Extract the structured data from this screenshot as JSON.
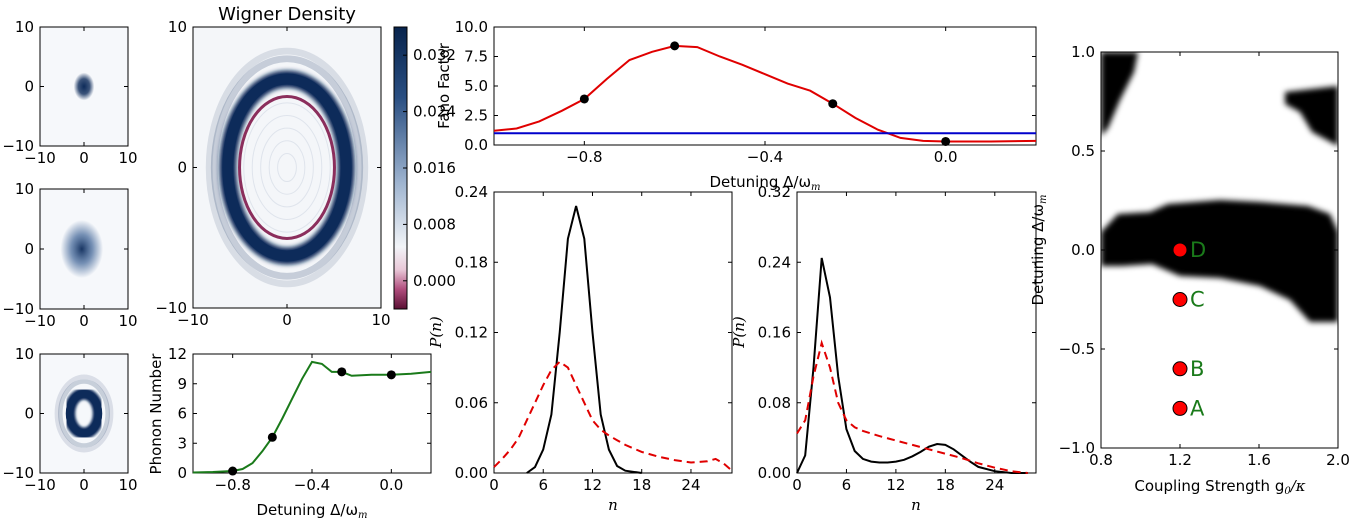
{
  "chart_data": [
    {
      "id": "small_a",
      "type": "heatmap",
      "xlim": [
        -10,
        10
      ],
      "ylim": [
        -10,
        10
      ],
      "xticks": [
        -10,
        0,
        10
      ],
      "yticks": [
        -10,
        0,
        10
      ],
      "shape": "blob",
      "center": [
        0,
        0
      ],
      "radius": 0.9,
      "sigma": 0.45,
      "color": "#0d2b5a"
    },
    {
      "id": "small_b",
      "type": "heatmap",
      "xlim": [
        -10,
        10
      ],
      "ylim": [
        -10,
        10
      ],
      "xticks": [
        -10,
        0,
        10
      ],
      "yticks": [
        -10,
        0,
        10
      ],
      "shape": "blob",
      "center": [
        -0.5,
        0
      ],
      "radius": 2.2,
      "sigma": 1.1,
      "color": "#0d2b5a"
    },
    {
      "id": "small_c",
      "type": "heatmap",
      "xlim": [
        -10,
        10
      ],
      "ylim": [
        -10,
        10
      ],
      "xticks": [
        -10,
        0,
        10
      ],
      "yticks": [
        -10,
        0,
        10
      ],
      "shape": "ring",
      "center": [
        0,
        0
      ],
      "ring_radius": 3.3,
      "ring_width": 1.3,
      "color": "#0d2b5a"
    },
    {
      "id": "wigner",
      "type": "heatmap",
      "title": "Wigner Density",
      "xlim": [
        -10,
        10
      ],
      "ylim": [
        -10,
        10
      ],
      "xticks": [
        -10,
        0,
        10
      ],
      "yticks": [
        -10,
        0,
        10
      ],
      "shape": "ring",
      "center": [
        0,
        0
      ],
      "ring_radius": 6.3,
      "ring_width": 0.9,
      "negative_ring_radius": 5.05,
      "color": "#0d2b5a",
      "negative_color": "#8b2e5c",
      "colorbar": {
        "ticks": [
          "0.032",
          "0.024",
          "0.016",
          "0.008",
          "0.000"
        ],
        "values": [
          0.032,
          0.024,
          0.016,
          0.008,
          0.0
        ],
        "range": [
          -0.004,
          0.036
        ]
      }
    },
    {
      "id": "phonon",
      "type": "line",
      "xlabel": "Detuning Δ/ω",
      "xlabel_sub": "m",
      "ylabel": "Phonon Number",
      "xlim": [
        -1.0,
        0.2
      ],
      "ylim": [
        0,
        12
      ],
      "xticks": [
        -0.8,
        -0.4,
        0.0
      ],
      "xtick_labels": [
        "−0.8",
        "−0.4",
        "0.0"
      ],
      "yticks": [
        0,
        3,
        6,
        9,
        12
      ],
      "ytick_labels": [
        "0",
        "3",
        "6",
        "9",
        "12"
      ],
      "series": [
        {
          "color": "#1a7a1a",
          "x": [
            -1.0,
            -0.9,
            -0.8,
            -0.75,
            -0.7,
            -0.65,
            -0.6,
            -0.55,
            -0.5,
            -0.45,
            -0.4,
            -0.35,
            -0.3,
            -0.25,
            -0.2,
            -0.1,
            0.0,
            0.1,
            0.2
          ],
          "y": [
            0.05,
            0.1,
            0.2,
            0.4,
            1.0,
            2.2,
            3.6,
            5.5,
            7.5,
            9.5,
            11.2,
            11.0,
            10.2,
            10.2,
            9.8,
            9.9,
            9.9,
            10.0,
            10.2
          ]
        }
      ],
      "points": {
        "x": [
          -0.8,
          -0.6,
          -0.25,
          0.0
        ],
        "y": [
          0.2,
          3.6,
          10.2,
          9.9
        ]
      }
    },
    {
      "id": "fano",
      "type": "line",
      "xlabel": "Detuning Δ/ω",
      "xlabel_sub": "m",
      "ylabel": "Fano Factor",
      "xlim": [
        -1.0,
        0.2
      ],
      "ylim": [
        0,
        10
      ],
      "xticks": [
        -0.8,
        -0.4,
        0.0
      ],
      "xtick_labels": [
        "−0.8",
        "−0.4",
        "0.0"
      ],
      "yticks": [
        0,
        2.5,
        5,
        7.5,
        10
      ],
      "ytick_labels": [
        "0.0",
        "2.5",
        "5.0",
        "7.5",
        "10.0"
      ],
      "series": [
        {
          "color": "#e00000",
          "x": [
            -1.0,
            -0.95,
            -0.9,
            -0.85,
            -0.8,
            -0.75,
            -0.7,
            -0.65,
            -0.6,
            -0.55,
            -0.5,
            -0.45,
            -0.4,
            -0.35,
            -0.3,
            -0.25,
            -0.2,
            -0.15,
            -0.1,
            -0.05,
            0.0,
            0.1,
            0.2
          ],
          "y": [
            1.2,
            1.4,
            2.0,
            2.9,
            3.9,
            5.6,
            7.2,
            7.9,
            8.4,
            8.3,
            7.5,
            6.8,
            6.0,
            5.2,
            4.6,
            3.5,
            2.3,
            1.3,
            0.6,
            0.35,
            0.3,
            0.3,
            0.35
          ]
        },
        {
          "color": "#0000cc",
          "x": [
            -1.0,
            0.2
          ],
          "y": [
            1.0,
            1.0
          ]
        }
      ],
      "points": {
        "x": [
          -0.8,
          -0.6,
          -0.25,
          0.0
        ],
        "y": [
          3.9,
          8.4,
          3.5,
          0.3
        ]
      }
    },
    {
      "id": "pn1",
      "type": "line",
      "xlabel": "n",
      "ylabel": "P(n)",
      "xlim": [
        0,
        29
      ],
      "ylim": [
        0,
        0.24
      ],
      "xticks": [
        0,
        6,
        12,
        18,
        24
      ],
      "xtick_labels": [
        "0",
        "6",
        "12",
        "18",
        "24"
      ],
      "yticks": [
        0,
        0.06,
        0.12,
        0.18,
        0.24
      ],
      "ytick_labels": [
        "0.00",
        "0.06",
        "0.12",
        "0.18",
        "0.24"
      ],
      "series": [
        {
          "color": "#000000",
          "dashed": false,
          "x": [
            4,
            5,
            6,
            7,
            8,
            9,
            10,
            11,
            12,
            13,
            14,
            15,
            16,
            18
          ],
          "y": [
            0.0,
            0.005,
            0.02,
            0.05,
            0.12,
            0.2,
            0.228,
            0.2,
            0.12,
            0.05,
            0.02,
            0.006,
            0.002,
            0.0
          ]
        },
        {
          "color": "#e00000",
          "dashed": true,
          "x": [
            0,
            1,
            2,
            3,
            4,
            5,
            6,
            7,
            8,
            9,
            10,
            11,
            12,
            13,
            14,
            15,
            16,
            17,
            18,
            20,
            22,
            24,
            26,
            27,
            28,
            29
          ],
          "y": [
            0.005,
            0.012,
            0.02,
            0.03,
            0.045,
            0.06,
            0.075,
            0.088,
            0.095,
            0.09,
            0.075,
            0.06,
            0.045,
            0.037,
            0.032,
            0.028,
            0.024,
            0.021,
            0.018,
            0.014,
            0.011,
            0.009,
            0.01,
            0.012,
            0.008,
            0.002
          ]
        }
      ]
    },
    {
      "id": "pn2",
      "type": "line",
      "xlabel": "n",
      "ylabel": "P(n)",
      "xlim": [
        0,
        29
      ],
      "ylim": [
        0,
        0.32
      ],
      "xticks": [
        0,
        6,
        12,
        18,
        24
      ],
      "xtick_labels": [
        "0",
        "6",
        "12",
        "18",
        "24"
      ],
      "yticks": [
        0,
        0.08,
        0.16,
        0.24,
        0.32
      ],
      "ytick_labels": [
        "0.00",
        "0.08",
        "0.16",
        "0.24",
        "0.32"
      ],
      "series": [
        {
          "color": "#000000",
          "dashed": false,
          "x": [
            0,
            1,
            2,
            3,
            4,
            5,
            6,
            7,
            8,
            9,
            10,
            11,
            12,
            13,
            14,
            15,
            16,
            17,
            18,
            19,
            20,
            21,
            22,
            24,
            26,
            28
          ],
          "y": [
            0.0,
            0.02,
            0.12,
            0.245,
            0.2,
            0.11,
            0.05,
            0.025,
            0.016,
            0.013,
            0.012,
            0.012,
            0.013,
            0.015,
            0.019,
            0.024,
            0.03,
            0.033,
            0.032,
            0.027,
            0.02,
            0.013,
            0.007,
            0.002,
            0.0,
            0.0
          ]
        },
        {
          "color": "#e00000",
          "dashed": true,
          "x": [
            0,
            1,
            2,
            3,
            4,
            5,
            6,
            7,
            8,
            10,
            12,
            14,
            16,
            18,
            20,
            22,
            24,
            26,
            28
          ],
          "y": [
            0.045,
            0.06,
            0.11,
            0.148,
            0.12,
            0.08,
            0.06,
            0.052,
            0.048,
            0.042,
            0.037,
            0.032,
            0.027,
            0.022,
            0.017,
            0.011,
            0.006,
            0.002,
            0.0
          ]
        }
      ]
    },
    {
      "id": "coupling",
      "type": "heatmap",
      "xlabel": "Coupling Strength g",
      "xlabel_sub": "0",
      "xlabel_tail": "/κ",
      "ylabel": "Detuning Δ/ω",
      "ylabel_sub": "m",
      "xlim": [
        0.8,
        2.0
      ],
      "ylim": [
        -1.0,
        1.0
      ],
      "xticks": [
        0.8,
        1.2,
        1.6,
        2.0
      ],
      "xtick_labels": [
        "0.8",
        "1.2",
        "1.6",
        "2.0"
      ],
      "yticks": [
        -1.0,
        -0.5,
        0.0,
        0.5,
        1.0
      ],
      "ytick_labels": [
        "−1.0",
        "−0.5",
        "0.0",
        "0.5",
        "1.0"
      ],
      "points": [
        {
          "label": "D",
          "x": 1.2,
          "y": 0.0
        },
        {
          "label": "C",
          "x": 1.2,
          "y": -0.25
        },
        {
          "label": "B",
          "x": 1.2,
          "y": -0.6
        },
        {
          "label": "A",
          "x": 1.2,
          "y": -0.8
        }
      ],
      "point_color": "#ff0000",
      "label_color": "#1a7a1a"
    }
  ]
}
